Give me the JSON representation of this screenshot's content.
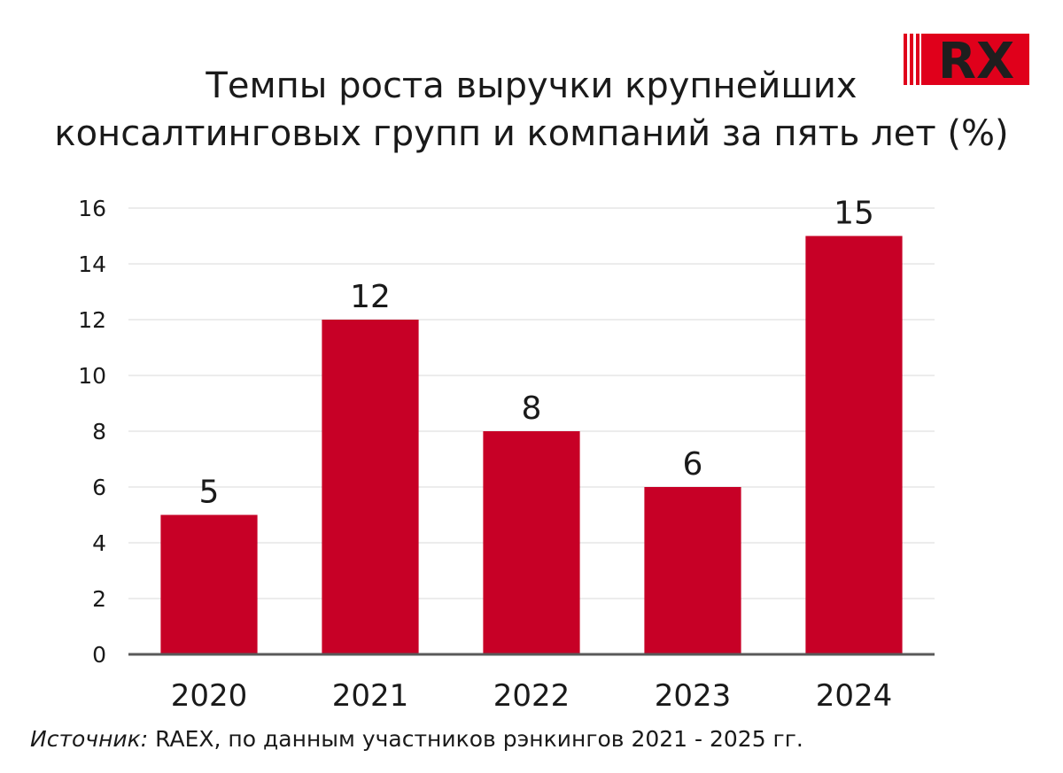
{
  "title_lines": [
    "Темпы роста выручки крупнейших",
    "консалтинговых групп и компаний за пять лет (%)"
  ],
  "logo": {
    "text": "RX"
  },
  "source": {
    "label": "Источник:",
    "text": " RAEX, по данным участников рэнкингов 2021 - 2025 гг."
  },
  "colors": {
    "bar": "#c70026",
    "grid": "#d9d9d9",
    "axis": "#595959",
    "logo_red": "#e0001b",
    "logo_dark": "#1e1e1e"
  },
  "chart_data": {
    "type": "bar",
    "title": "Темпы роста выручки крупнейших консалтинговых групп и компаний за пять лет (%)",
    "categories": [
      "2020",
      "2021",
      "2022",
      "2023",
      "2024"
    ],
    "values": [
      5,
      12,
      8,
      6,
      15
    ],
    "data_labels": [
      "5",
      "12",
      "8",
      "6",
      "15"
    ],
    "yticks": [
      0,
      2,
      4,
      6,
      8,
      10,
      12,
      14,
      16
    ],
    "ylim": [
      0,
      16
    ],
    "xlabel": "",
    "ylabel": "",
    "grid": true,
    "legend": "none"
  }
}
